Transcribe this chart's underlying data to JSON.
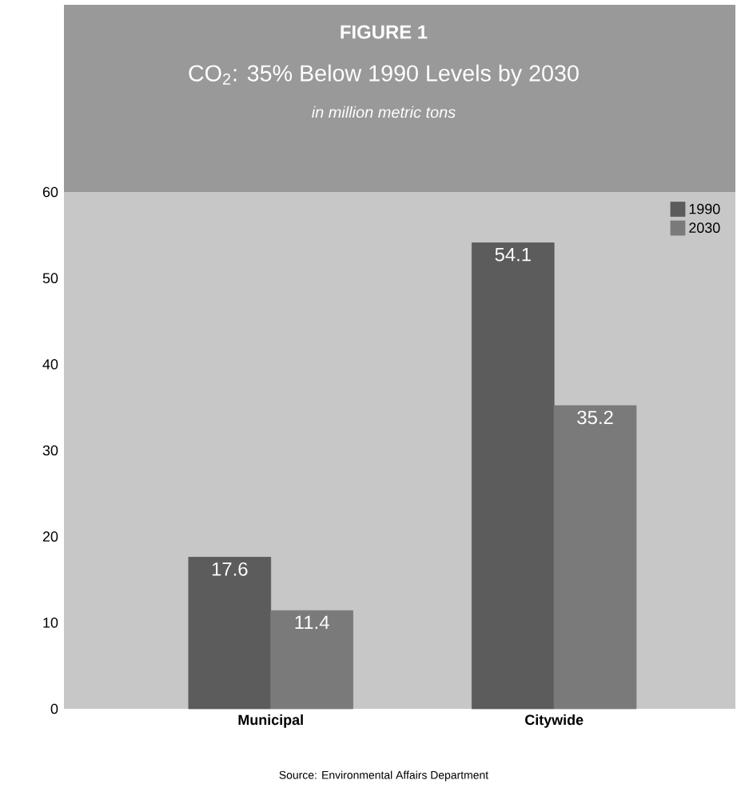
{
  "chart_data": {
    "type": "bar",
    "title": "FIGURE 1",
    "subtitle": "CO$_{2}$: 35% Below 1990 Levels by 2030",
    "ylabel": "in million metric tons",
    "categories": [
      "Municipal",
      "Citywide"
    ],
    "series": [
      {
        "name": "1990",
        "color": "#5c5c5c",
        "values": [
          17.6,
          54.1
        ]
      },
      {
        "name": "2030",
        "color": "#7a7a7a",
        "values": [
          11.4,
          35.2
        ]
      }
    ],
    "ylim": [
      0,
      60
    ],
    "yticks": [
      0,
      10,
      20,
      30,
      40,
      50,
      60
    ],
    "data_labels": true,
    "legend": "top right",
    "annotations": [
      "Source: Environmental Affairs Department"
    ]
  }
}
